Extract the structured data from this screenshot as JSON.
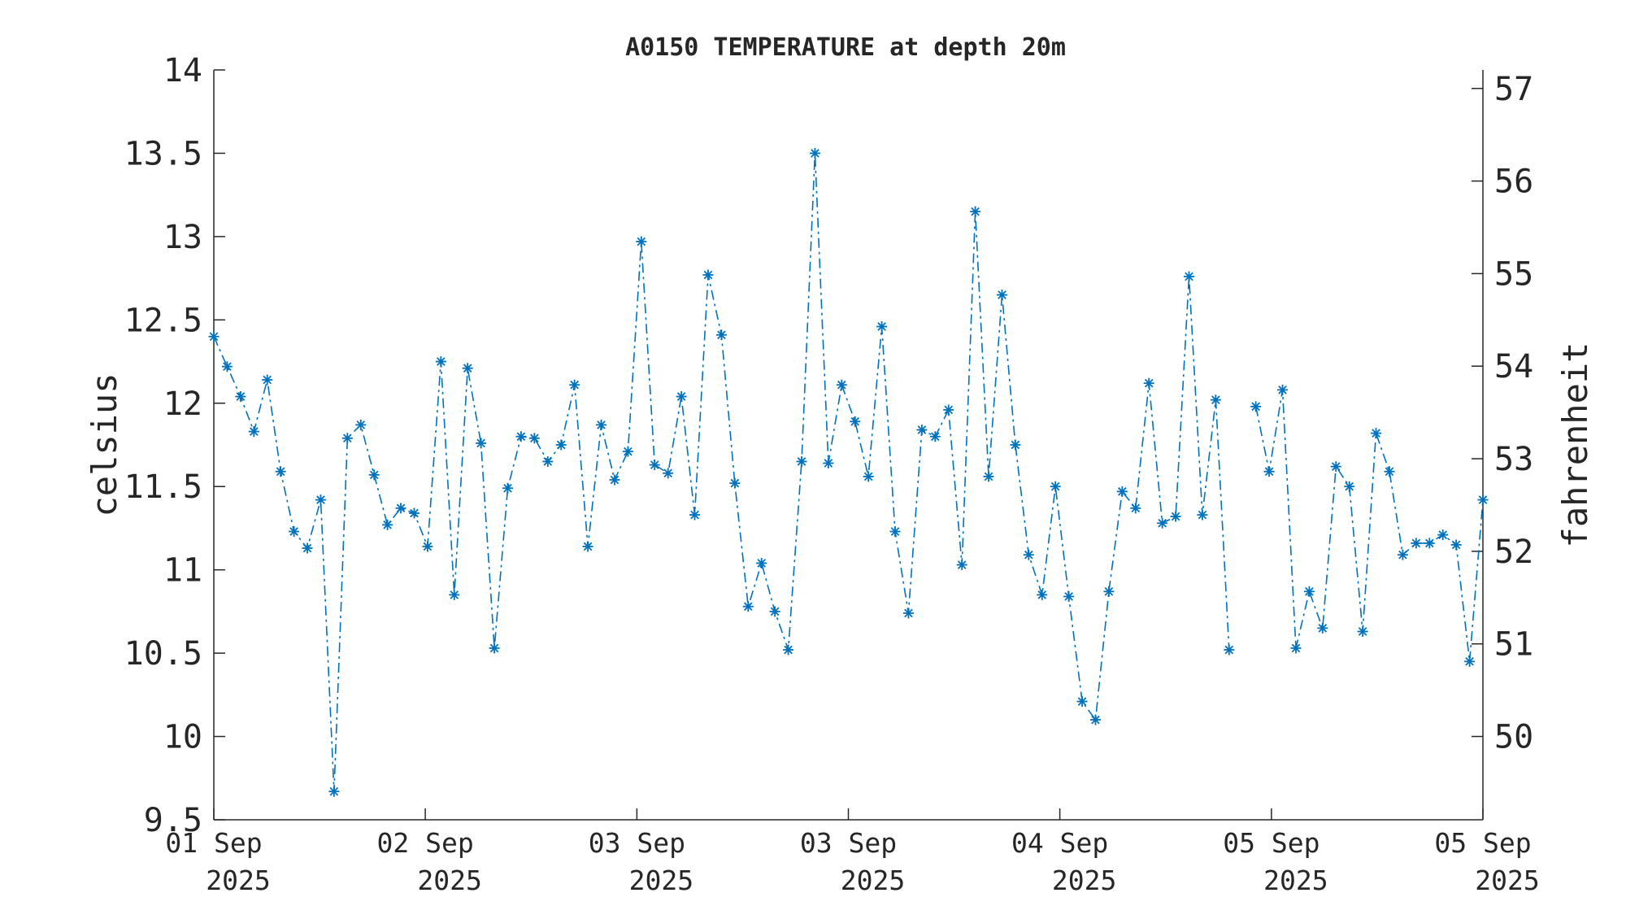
{
  "chart_data": {
    "type": "line",
    "title": "A0150 TEMPERATURE at depth 20m",
    "ylabel": "celsius",
    "ylabel_right": "fahrenheit",
    "ylim": [
      9.5,
      14
    ],
    "yticks": [
      9.5,
      10,
      10.5,
      11,
      11.5,
      12,
      12.5,
      13,
      13.5,
      14
    ],
    "ytick_labels": [
      "9.5",
      "10",
      "10.5",
      "11",
      "11.5",
      "12",
      "12.5",
      "13",
      "13.5",
      "14"
    ],
    "ylim_right": [
      49.1,
      57.2
    ],
    "yticks_right": [
      50,
      51,
      52,
      53,
      54,
      55,
      56,
      57
    ],
    "ytick_labels_right": [
      "50",
      "51",
      "52",
      "53",
      "54",
      "55",
      "56",
      "57"
    ],
    "xlim": [
      0,
      95
    ],
    "xticks": [
      0,
      15.83,
      31.67,
      47.5,
      63.33,
      79.17,
      95
    ],
    "xtick_labels": [
      {
        "line1": "01 Sep",
        "line2": "2025"
      },
      {
        "line1": "02 Sep",
        "line2": "2025"
      },
      {
        "line1": "03 Sep",
        "line2": "2025"
      },
      {
        "line1": "03 Sep",
        "line2": "2025"
      },
      {
        "line1": "04 Sep",
        "line2": "2025"
      },
      {
        "line1": "05 Sep",
        "line2": "2025"
      },
      {
        "line1": "05 Sep",
        "line2": "2025"
      }
    ],
    "grid": false,
    "series": [
      {
        "color": "#0072BD",
        "marker": "asterisk",
        "line_style": "dash-dot",
        "x": [
          0,
          1,
          2,
          3,
          4,
          5,
          6,
          7,
          8,
          9,
          10,
          11,
          12,
          13,
          14,
          15,
          16,
          17,
          18,
          19,
          20,
          21,
          22,
          23,
          24,
          25,
          26,
          27,
          28,
          29,
          30,
          31,
          32,
          33,
          34,
          35,
          36,
          37,
          38,
          39,
          40,
          41,
          42,
          43,
          44,
          45,
          46,
          47,
          48,
          49,
          50,
          51,
          52,
          53,
          54,
          55,
          56,
          57,
          58,
          59,
          60,
          61,
          62,
          63,
          64,
          65,
          66,
          67,
          68,
          69,
          70,
          71,
          72,
          73,
          74,
          75,
          76,
          77,
          78,
          79,
          80,
          81,
          82,
          83,
          84,
          85,
          86,
          87,
          88,
          89,
          90,
          91,
          92,
          93,
          94,
          95
        ],
        "values": [
          12.4,
          12.22,
          12.04,
          11.83,
          12.14,
          11.59,
          11.23,
          11.13,
          11.42,
          9.67,
          11.79,
          11.87,
          11.57,
          11.27,
          11.37,
          11.34,
          11.14,
          12.25,
          10.85,
          12.21,
          11.76,
          10.53,
          11.49,
          11.8,
          11.79,
          11.65,
          11.75,
          12.11,
          11.14,
          11.87,
          11.54,
          11.71,
          12.97,
          11.63,
          11.58,
          12.04,
          11.33,
          12.77,
          12.41,
          11.52,
          10.78,
          11.04,
          10.75,
          10.52,
          11.65,
          13.5,
          11.64,
          12.11,
          11.89,
          11.56,
          12.46,
          11.23,
          10.74,
          11.84,
          11.8,
          11.96,
          11.03,
          13.15,
          11.56,
          12.65,
          11.75,
          11.09,
          10.85,
          11.5,
          10.84,
          10.21,
          10.1,
          10.87,
          11.47,
          11.37,
          12.12,
          11.28,
          11.32,
          12.76,
          11.33,
          12.02,
          10.52,
          null,
          11.98,
          11.59,
          12.08,
          10.53,
          10.87,
          10.65,
          11.62,
          11.5,
          10.63,
          11.82,
          11.59,
          11.09,
          11.16,
          11.16,
          11.21,
          11.15,
          10.45,
          11.42
        ]
      }
    ]
  }
}
